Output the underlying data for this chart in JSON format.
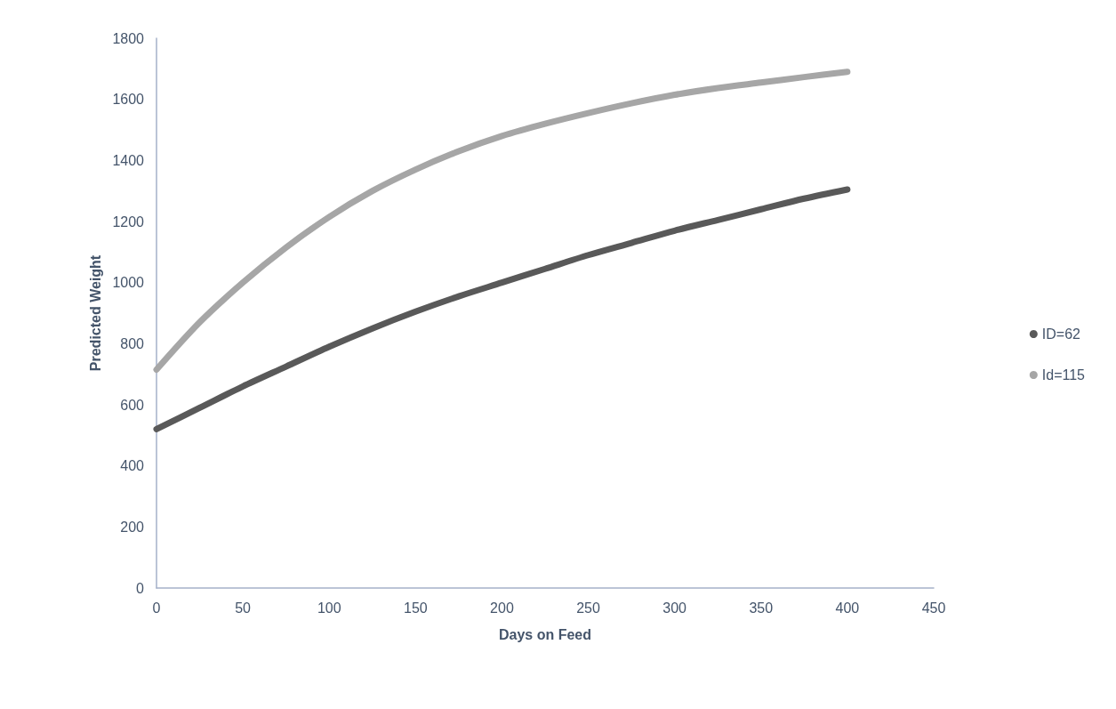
{
  "chart_data": {
    "type": "line",
    "xlabel": "Days on Feed",
    "ylabel": "Predicted Weight",
    "x": [
      0,
      25,
      50,
      75,
      100,
      125,
      150,
      175,
      200,
      225,
      250,
      275,
      300,
      325,
      350,
      375,
      400
    ],
    "series": [
      {
        "name": "ID=62",
        "color": "#595959",
        "values": [
          520,
          590,
          660,
          725,
          790,
          850,
          905,
          955,
          1000,
          1045,
          1090,
          1130,
          1170,
          1205,
          1240,
          1275,
          1305
        ]
      },
      {
        "name": "Id=115",
        "color": "#a6a6a6",
        "values": [
          715,
          870,
          1000,
          1115,
          1215,
          1300,
          1370,
          1430,
          1480,
          1520,
          1555,
          1587,
          1615,
          1637,
          1655,
          1673,
          1690
        ]
      }
    ],
    "xlim": [
      0,
      450
    ],
    "xticks": [
      0,
      50,
      100,
      150,
      200,
      250,
      300,
      350,
      400,
      450
    ],
    "ylim": [
      0,
      1800
    ],
    "yticks": [
      0,
      200,
      400,
      600,
      800,
      1000,
      1200,
      1400,
      1600,
      1800
    ],
    "grid": false,
    "legend": "right",
    "marker": "none",
    "line_style": "solid"
  }
}
